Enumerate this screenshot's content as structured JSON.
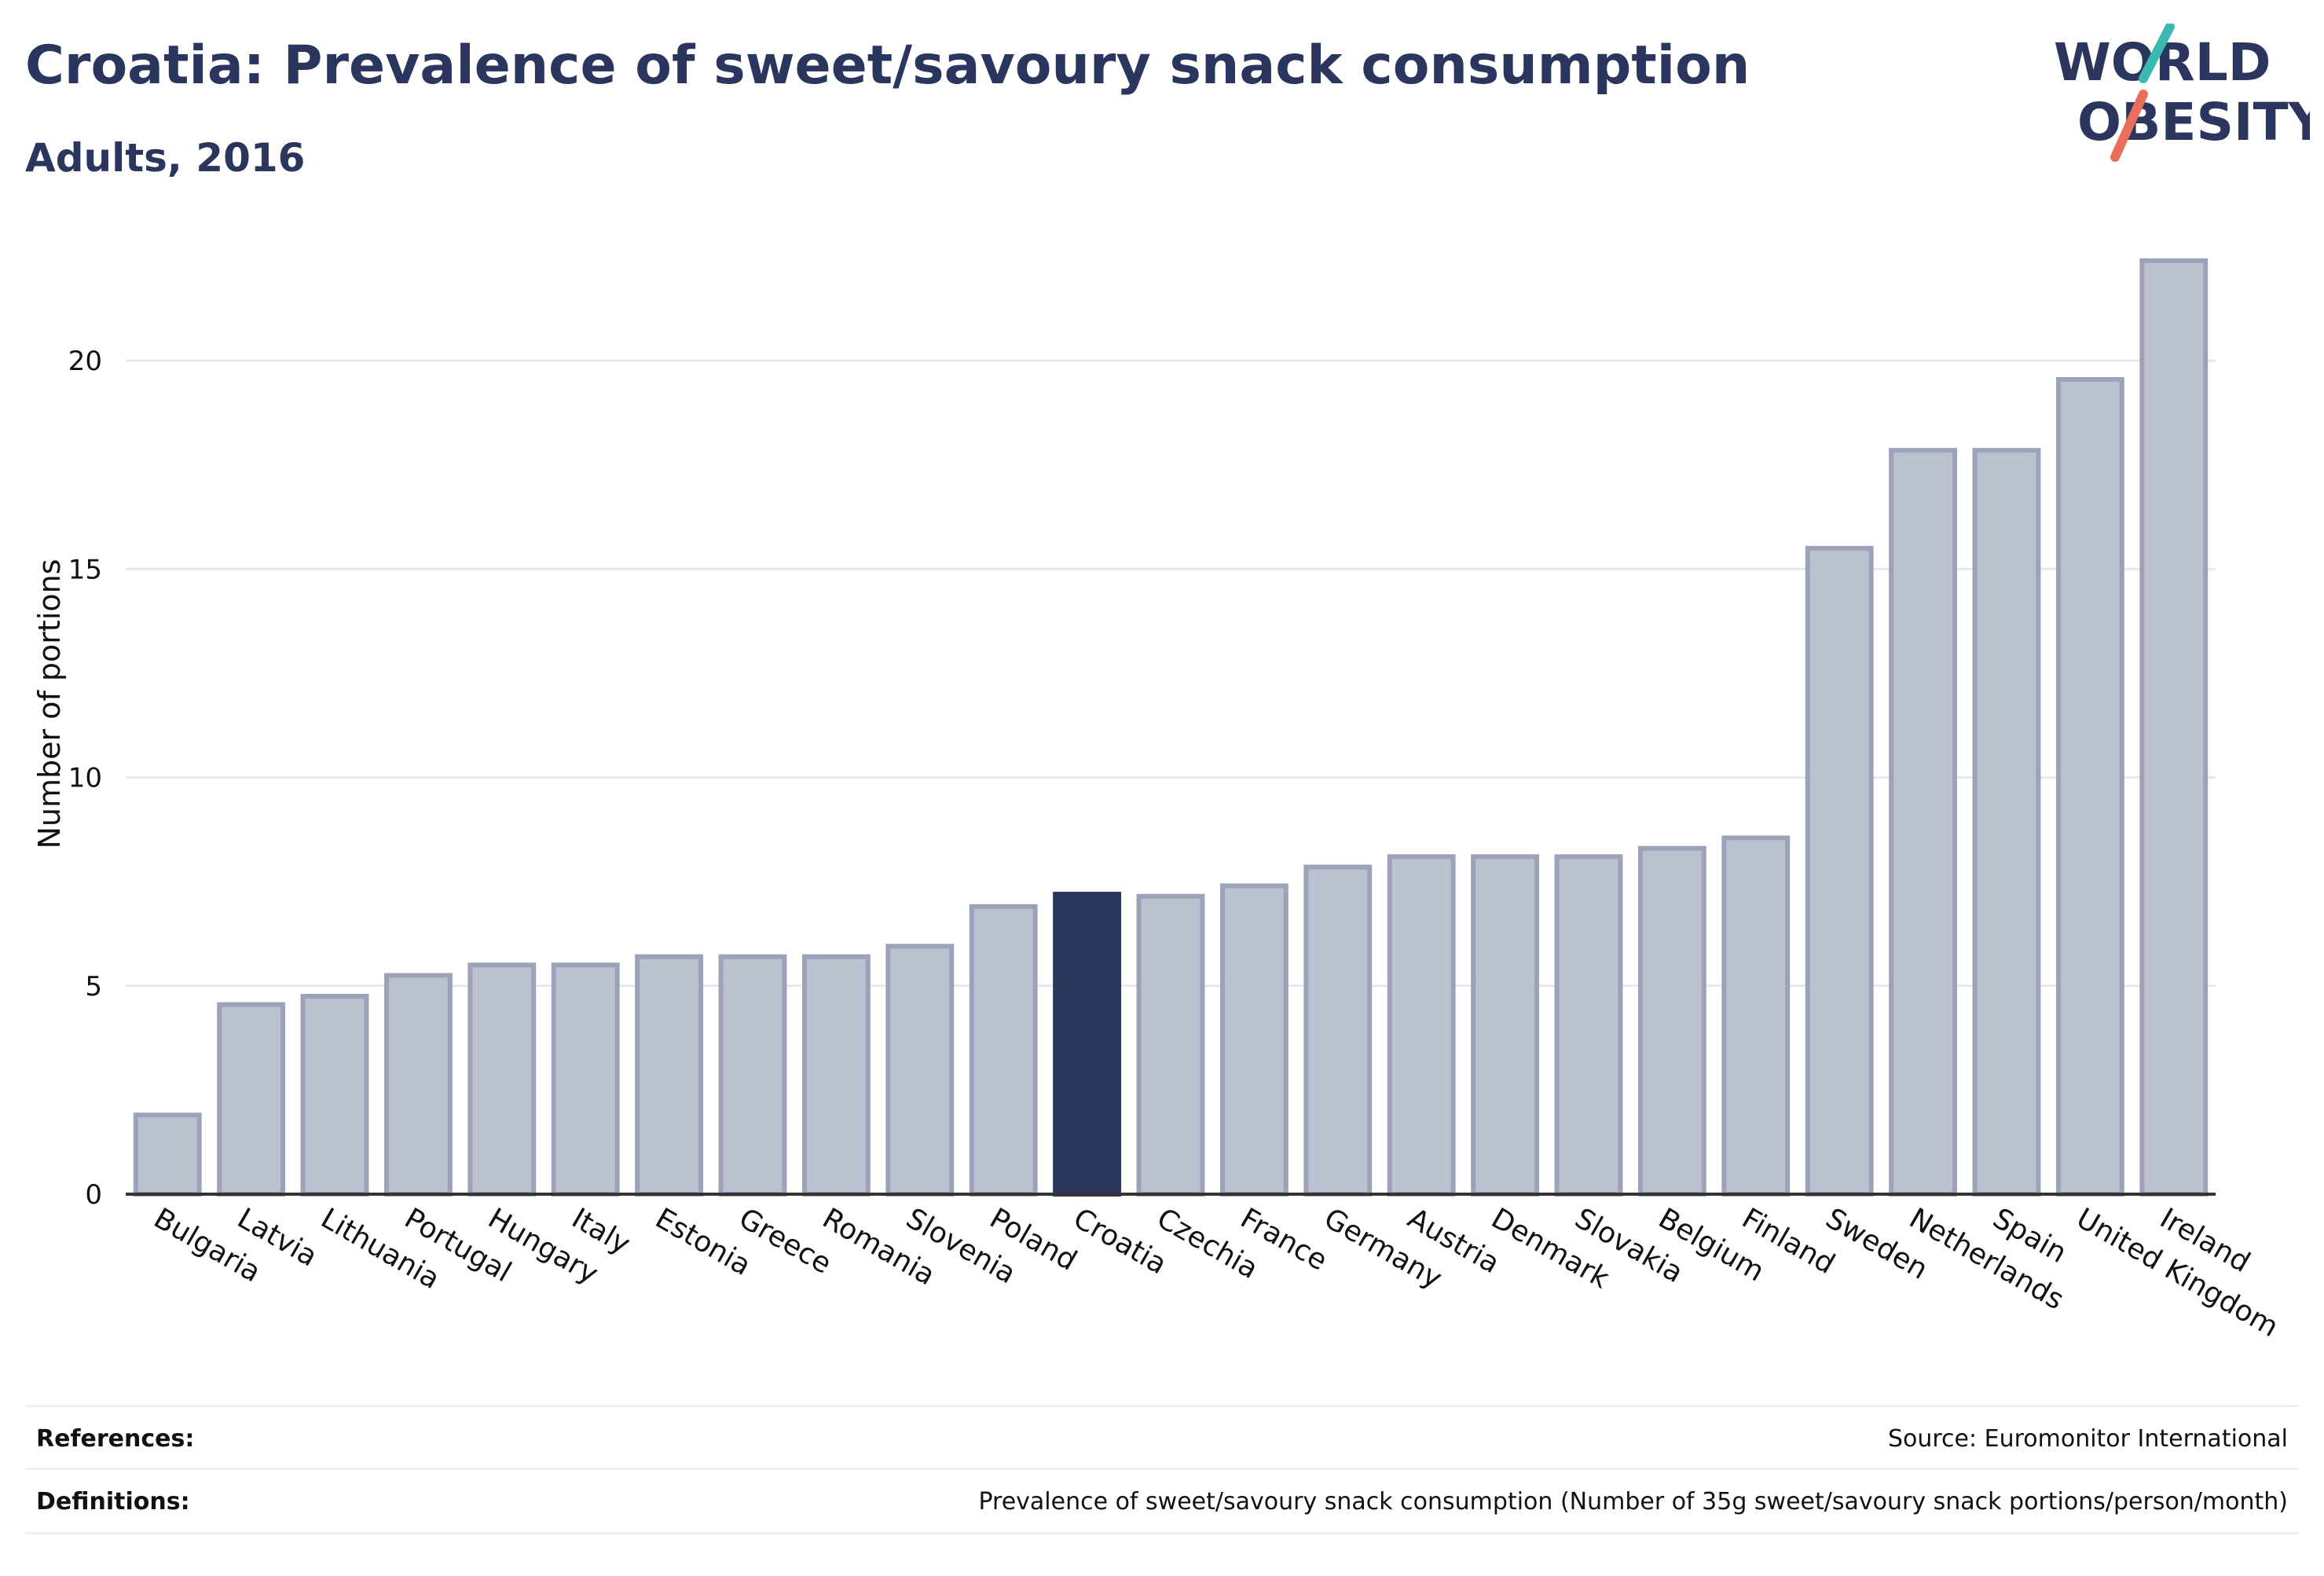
{
  "header": {
    "title": "Croatia: Prevalence of sweet/savoury snack consumption",
    "subtitle": "Adults, 2016"
  },
  "logo": {
    "line1": "WORLD",
    "line2": "OBESITY",
    "text_color": "#2b365e",
    "accent_teal": "#3bb8b0",
    "accent_coral": "#e8705a"
  },
  "colors": {
    "bar_fill": "#bcc1d0",
    "bar_stroke": "#9ca3b8",
    "highlight": "#2b365e",
    "grid": "#e6e8ef",
    "axis": "#333333"
  },
  "chart_data": {
    "type": "bar",
    "title": "",
    "xlabel": "",
    "ylabel": "Number of portions",
    "ylim": [
      0,
      23
    ],
    "yticks": [
      0,
      5,
      10,
      15,
      20
    ],
    "grid": true,
    "highlight_category": "Croatia",
    "categories": [
      "Bulgaria",
      "Latvia",
      "Lithuania",
      "Portugal",
      "Hungary",
      "Italy",
      "Estonia",
      "Greece",
      "Romania",
      "Slovenia",
      "Poland",
      "Croatia",
      "Czechia",
      "France",
      "Germany",
      "Austria",
      "Denmark",
      "Slovakia",
      "Belgium",
      "Finland",
      "Sweden",
      "Netherlands",
      "Spain",
      "United Kingdom",
      "Ireland"
    ],
    "values": [
      1.9,
      4.55,
      4.75,
      5.25,
      5.5,
      5.5,
      5.7,
      5.7,
      5.7,
      5.95,
      6.9,
      7.2,
      7.15,
      7.4,
      7.85,
      8.1,
      8.1,
      8.1,
      8.3,
      8.55,
      15.5,
      17.85,
      17.85,
      19.55,
      22.4
    ]
  },
  "footer": {
    "references_label": "References:",
    "references_value": "Source: Euromonitor International",
    "definitions_label": "Definitions:",
    "definitions_value": "Prevalence of sweet/savoury snack consumption (Number of 35g sweet/savoury snack portions/person/month)"
  }
}
